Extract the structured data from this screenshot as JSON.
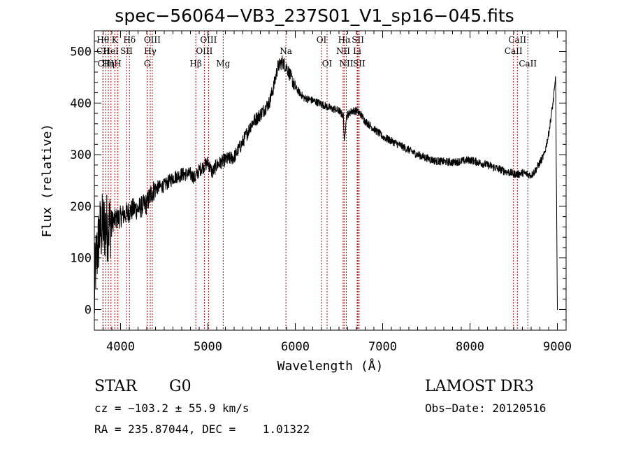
{
  "chart_data": {
    "type": "line",
    "title": "spec−56064−VB3_237S01_V1_sp16−045.fits",
    "xlabel": "Wavelength (Å)",
    "ylabel": "Flux (relative)",
    "xlim": [
      3700,
      9100
    ],
    "ylim": [
      -40,
      540
    ],
    "xticks": [
      4000,
      5000,
      6000,
      7000,
      8000,
      9000
    ],
    "yticks": [
      0,
      100,
      200,
      300,
      400,
      500
    ],
    "grid": false,
    "series": [
      {
        "name": "spectrum",
        "x": [
          3700,
          3710,
          3760,
          3800,
          3850,
          3900,
          3950,
          4000,
          4050,
          4100,
          4150,
          4200,
          4250,
          4300,
          4350,
          4400,
          4500,
          4600,
          4700,
          4800,
          4850,
          4900,
          5000,
          5050,
          5100,
          5150,
          5200,
          5300,
          5400,
          5500,
          5600,
          5700,
          5750,
          5800,
          5850,
          5900,
          5950,
          6000,
          6100,
          6200,
          6300,
          6400,
          6500,
          6550,
          6563,
          6580,
          6600,
          6650,
          6700,
          6750,
          6800,
          7000,
          7200,
          7400,
          7600,
          7800,
          8000,
          8200,
          8400,
          8500,
          8550,
          8600,
          8700,
          8750,
          8800,
          8850,
          8900,
          8950,
          8970,
          8980,
          9000,
          9005
        ],
        "values": [
          0,
          80,
          150,
          160,
          160,
          170,
          175,
          180,
          185,
          190,
          195,
          195,
          200,
          205,
          225,
          235,
          240,
          255,
          262,
          262,
          255,
          270,
          285,
          265,
          280,
          285,
          290,
          295,
          325,
          360,
          378,
          400,
          430,
          470,
          480,
          470,
          450,
          430,
          410,
          405,
          398,
          390,
          385,
          375,
          318,
          370,
          378,
          385,
          385,
          378,
          365,
          335,
          318,
          300,
          288,
          285,
          290,
          280,
          268,
          263,
          262,
          265,
          260,
          270,
          285,
          300,
          340,
          400,
          430,
          455,
          0,
          0
        ]
      }
    ],
    "lines": [
      {
        "label": "Hθ",
        "x": 3798,
        "row": 1
      },
      {
        "label": "CII",
        "x": 3800,
        "row": 2
      },
      {
        "label": "K",
        "x": 3934,
        "row": 1
      },
      {
        "label": "HeI",
        "x": 3890,
        "row": 2
      },
      {
        "label": "CIII",
        "x": 3830,
        "row": 3
      },
      {
        "label": "Hη",
        "x": 3860,
        "row": 3
      },
      {
        "label": "Hδ",
        "x": 4102,
        "row": 1
      },
      {
        "label": "SII",
        "x": 4068,
        "row": 2
      },
      {
        "label": "H",
        "x": 3969,
        "row": 3
      },
      {
        "label": "OIII",
        "x": 4363,
        "row": 1
      },
      {
        "label": "Hγ",
        "x": 4340,
        "row": 2
      },
      {
        "label": "G",
        "x": 4305,
        "row": 3
      },
      {
        "label": "OIII",
        "x": 5007,
        "row": 1
      },
      {
        "label": "OIII",
        "x": 4959,
        "row": 2
      },
      {
        "label": "Hβ",
        "x": 4861,
        "row": 3
      },
      {
        "label": "Mg",
        "x": 5175,
        "row": 3
      },
      {
        "label": "Na",
        "x": 5893,
        "row": 2
      },
      {
        "label": "OI",
        "x": 6300,
        "row": 1
      },
      {
        "label": "OI",
        "x": 6364,
        "row": 3
      },
      {
        "label": "Hα",
        "x": 6563,
        "row": 1
      },
      {
        "label": "NII",
        "x": 6548,
        "row": 2
      },
      {
        "label": "NII",
        "x": 6584,
        "row": 3
      },
      {
        "label": "SII",
        "x": 6717,
        "row": 1
      },
      {
        "label": "Li",
        "x": 6708,
        "row": 2
      },
      {
        "label": "SII",
        "x": 6731,
        "row": 3
      },
      {
        "label": "CaII",
        "x": 8542,
        "row": 1
      },
      {
        "label": "CaII",
        "x": 8498,
        "row": 2
      },
      {
        "label": "CaII",
        "x": 8662,
        "row": 3
      }
    ]
  },
  "info": {
    "object_class": "STAR",
    "subclass": "G0",
    "survey": "LAMOST DR3",
    "cz": "cz = −103.2 ± 55.9 km/s",
    "obs_date": "Obs−Date: 20120516",
    "coords": "RA = 235.87044, DEC =    1.01322"
  }
}
